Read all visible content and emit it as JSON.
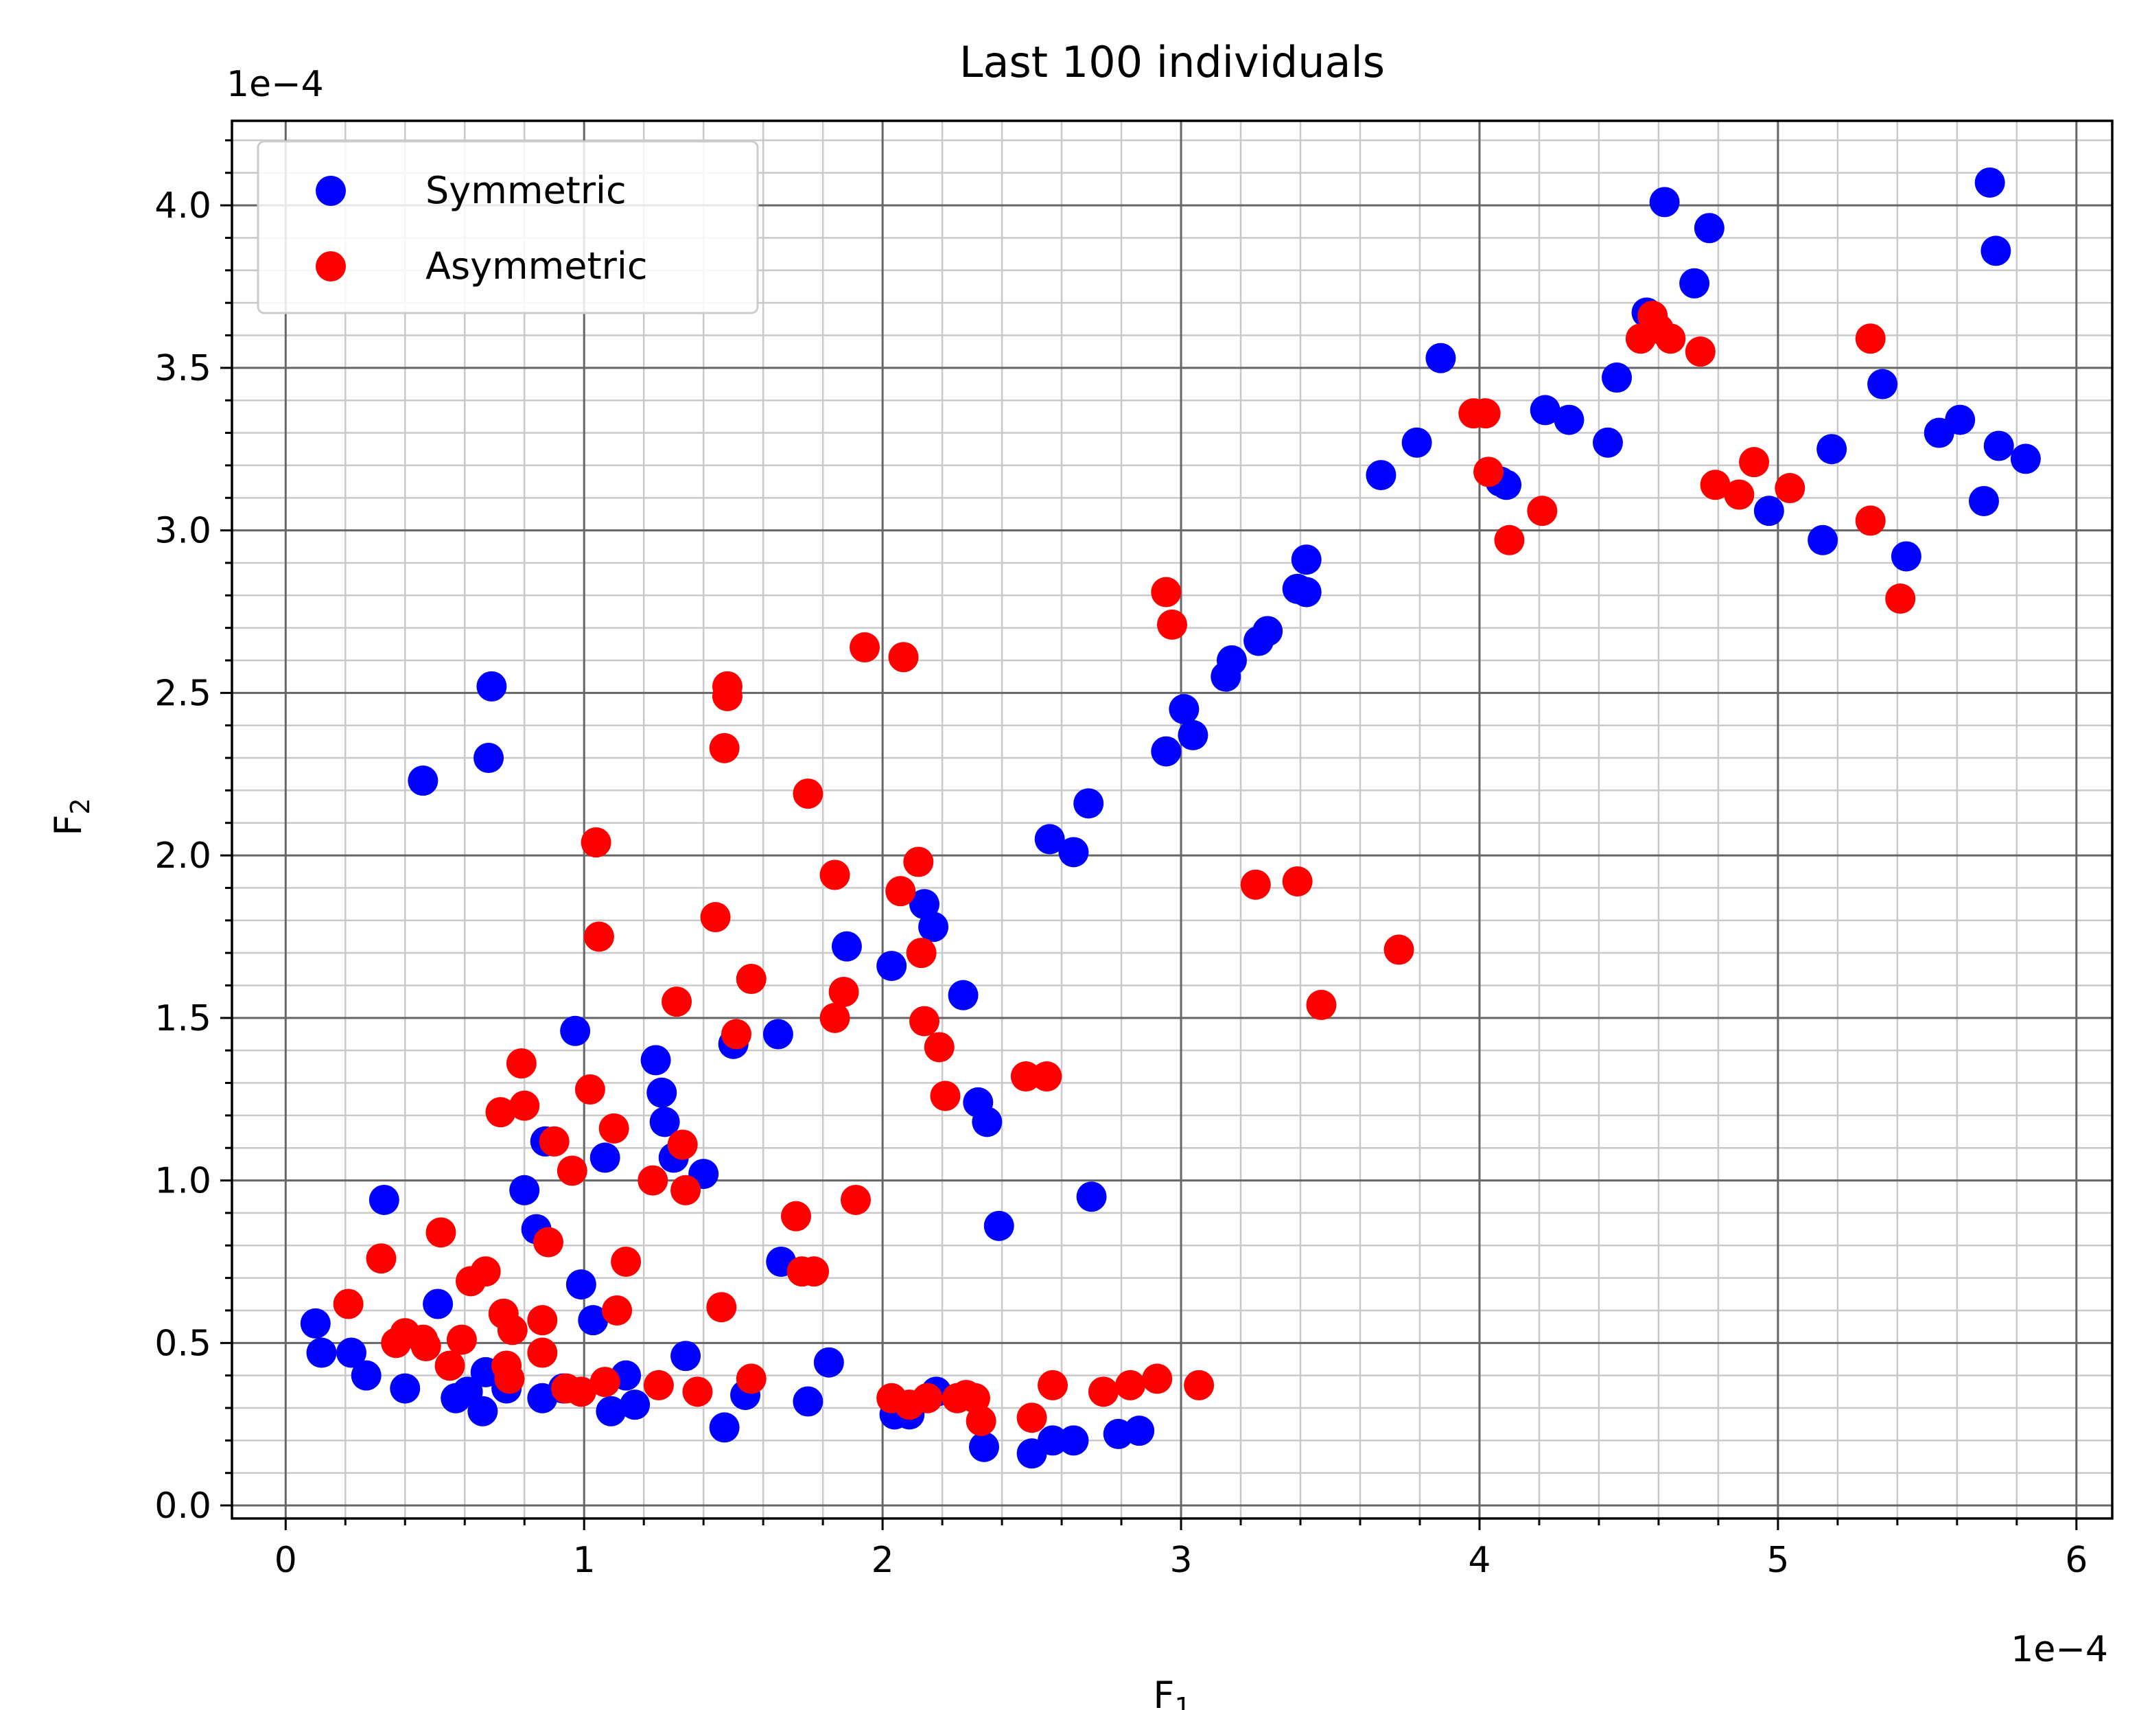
{
  "chart_data": {
    "type": "scatter",
    "title": "Last 100 individuals",
    "xlabel": {
      "main": "F",
      "sub": "1"
    },
    "ylabel": {
      "main": "F",
      "sub": "2"
    },
    "x_offset_label": "1e−4",
    "y_offset_label": "1e−4",
    "xlim": [
      -0.18,
      6.12
    ],
    "ylim": [
      -0.04,
      4.26
    ],
    "x_ticks": [
      0,
      1,
      2,
      3,
      4,
      5,
      6
    ],
    "x_tick_labels": [
      "0",
      "1",
      "2",
      "3",
      "4",
      "5",
      "6"
    ],
    "y_ticks": [
      0,
      0.5,
      1,
      1.5,
      2,
      2.5,
      3,
      3.5,
      4
    ],
    "y_tick_labels": [
      "0.0",
      "0.5",
      "1.0",
      "1.5",
      "2.0",
      "2.5",
      "3.0",
      "3.5",
      "4.0"
    ],
    "x_minor_step": 0.2,
    "y_minor_step": 0.1,
    "grid": true,
    "legend_position": "top-left",
    "series": [
      {
        "name": "Symmetric",
        "color": "#0000ff",
        "points": [
          [
            0.1,
            0.56
          ],
          [
            0.12,
            0.47
          ],
          [
            0.22,
            0.47
          ],
          [
            0.27,
            0.4
          ],
          [
            0.33,
            0.94
          ],
          [
            0.4,
            0.36
          ],
          [
            0.46,
            2.23
          ],
          [
            0.51,
            0.62
          ],
          [
            0.57,
            0.33
          ],
          [
            0.61,
            0.35
          ],
          [
            0.66,
            0.29
          ],
          [
            0.67,
            0.41
          ],
          [
            0.68,
            2.3
          ],
          [
            0.69,
            2.52
          ],
          [
            0.74,
            0.36
          ],
          [
            0.8,
            0.97
          ],
          [
            0.84,
            0.85
          ],
          [
            0.86,
            0.33
          ],
          [
            0.87,
            1.12
          ],
          [
            0.93,
            0.36
          ],
          [
            0.97,
            1.46
          ],
          [
            0.99,
            0.68
          ],
          [
            1.03,
            0.57
          ],
          [
            1.07,
            1.07
          ],
          [
            1.09,
            0.29
          ],
          [
            1.14,
            0.4
          ],
          [
            1.17,
            0.31
          ],
          [
            1.24,
            1.37
          ],
          [
            1.26,
            1.27
          ],
          [
            1.27,
            1.18
          ],
          [
            1.3,
            1.07
          ],
          [
            1.34,
            0.46
          ],
          [
            1.4,
            1.02
          ],
          [
            1.47,
            0.24
          ],
          [
            1.5,
            1.42
          ],
          [
            1.54,
            0.34
          ],
          [
            1.65,
            1.45
          ],
          [
            1.66,
            0.75
          ],
          [
            1.75,
            0.32
          ],
          [
            1.82,
            0.44
          ],
          [
            1.88,
            1.72
          ],
          [
            2.03,
            1.66
          ],
          [
            2.04,
            0.28
          ],
          [
            2.09,
            0.28
          ],
          [
            2.14,
            1.85
          ],
          [
            2.17,
            1.78
          ],
          [
            2.18,
            0.35
          ],
          [
            2.27,
            1.57
          ],
          [
            2.32,
            1.24
          ],
          [
            2.34,
            0.18
          ],
          [
            2.35,
            1.18
          ],
          [
            2.39,
            0.86
          ],
          [
            2.5,
            0.16
          ],
          [
            2.56,
            2.05
          ],
          [
            2.57,
            0.2
          ],
          [
            2.64,
            2.01
          ],
          [
            2.64,
            0.2
          ],
          [
            2.69,
            2.16
          ],
          [
            2.7,
            0.95
          ],
          [
            2.79,
            0.22
          ],
          [
            2.86,
            0.23
          ],
          [
            2.95,
            2.32
          ],
          [
            3.01,
            2.45
          ],
          [
            3.04,
            2.37
          ],
          [
            3.15,
            2.55
          ],
          [
            3.17,
            2.6
          ],
          [
            3.26,
            2.66
          ],
          [
            3.29,
            2.69
          ],
          [
            3.39,
            2.82
          ],
          [
            3.42,
            2.91
          ],
          [
            3.42,
            2.81
          ],
          [
            3.67,
            3.17
          ],
          [
            3.79,
            3.27
          ],
          [
            3.87,
            3.53
          ],
          [
            4.07,
            3.15
          ],
          [
            4.09,
            3.14
          ],
          [
            4.22,
            3.37
          ],
          [
            4.3,
            3.34
          ],
          [
            4.43,
            3.27
          ],
          [
            4.46,
            3.47
          ],
          [
            4.56,
            3.67
          ],
          [
            4.62,
            4.01
          ],
          [
            4.72,
            3.76
          ],
          [
            4.77,
            3.93
          ],
          [
            4.97,
            3.06
          ],
          [
            5.15,
            2.97
          ],
          [
            5.18,
            3.25
          ],
          [
            5.35,
            3.45
          ],
          [
            5.43,
            2.92
          ],
          [
            5.54,
            3.3
          ],
          [
            5.61,
            3.34
          ],
          [
            5.69,
            3.09
          ],
          [
            5.71,
            4.07
          ],
          [
            5.73,
            3.86
          ],
          [
            5.74,
            3.26
          ],
          [
            5.83,
            3.22
          ]
        ]
      },
      {
        "name": "Asymmetric",
        "color": "#ff0000",
        "points": [
          [
            0.21,
            0.62
          ],
          [
            0.32,
            0.76
          ],
          [
            0.37,
            0.5
          ],
          [
            0.4,
            0.53
          ],
          [
            0.46,
            0.51
          ],
          [
            0.47,
            0.49
          ],
          [
            0.52,
            0.84
          ],
          [
            0.55,
            0.43
          ],
          [
            0.59,
            0.51
          ],
          [
            0.62,
            0.69
          ],
          [
            0.67,
            0.72
          ],
          [
            0.72,
            1.21
          ],
          [
            0.73,
            0.59
          ],
          [
            0.74,
            0.43
          ],
          [
            0.75,
            0.39
          ],
          [
            0.76,
            0.54
          ],
          [
            0.79,
            1.36
          ],
          [
            0.8,
            1.23
          ],
          [
            0.86,
            0.47
          ],
          [
            0.86,
            0.57
          ],
          [
            0.88,
            0.81
          ],
          [
            0.9,
            1.12
          ],
          [
            0.94,
            0.36
          ],
          [
            0.96,
            1.03
          ],
          [
            0.99,
            0.35
          ],
          [
            1.02,
            1.28
          ],
          [
            1.04,
            2.04
          ],
          [
            1.05,
            1.75
          ],
          [
            1.07,
            0.38
          ],
          [
            1.1,
            1.16
          ],
          [
            1.11,
            0.6
          ],
          [
            1.14,
            0.75
          ],
          [
            1.23,
            1.0
          ],
          [
            1.25,
            0.37
          ],
          [
            1.31,
            1.55
          ],
          [
            1.33,
            1.11
          ],
          [
            1.34,
            0.97
          ],
          [
            1.38,
            0.35
          ],
          [
            1.44,
            1.81
          ],
          [
            1.46,
            0.61
          ],
          [
            1.47,
            2.33
          ],
          [
            1.48,
            2.52
          ],
          [
            1.48,
            2.49
          ],
          [
            1.51,
            1.45
          ],
          [
            1.56,
            1.62
          ],
          [
            1.56,
            0.39
          ],
          [
            1.71,
            0.89
          ],
          [
            1.73,
            0.72
          ],
          [
            1.75,
            2.19
          ],
          [
            1.77,
            0.72
          ],
          [
            1.84,
            1.94
          ],
          [
            1.84,
            1.5
          ],
          [
            1.87,
            1.58
          ],
          [
            1.91,
            0.94
          ],
          [
            1.94,
            2.64
          ],
          [
            2.03,
            0.33
          ],
          [
            2.06,
            1.89
          ],
          [
            2.07,
            2.61
          ],
          [
            2.09,
            0.31
          ],
          [
            2.12,
            1.98
          ],
          [
            2.13,
            1.7
          ],
          [
            2.14,
            1.49
          ],
          [
            2.15,
            0.33
          ],
          [
            2.19,
            1.41
          ],
          [
            2.21,
            1.26
          ],
          [
            2.25,
            0.33
          ],
          [
            2.28,
            0.34
          ],
          [
            2.31,
            0.33
          ],
          [
            2.33,
            0.26
          ],
          [
            2.48,
            1.32
          ],
          [
            2.5,
            0.27
          ],
          [
            2.55,
            1.32
          ],
          [
            2.57,
            0.37
          ],
          [
            2.74,
            0.35
          ],
          [
            2.83,
            0.37
          ],
          [
            2.92,
            0.39
          ],
          [
            2.95,
            2.81
          ],
          [
            2.97,
            2.71
          ],
          [
            3.06,
            0.37
          ],
          [
            3.25,
            1.91
          ],
          [
            3.39,
            1.92
          ],
          [
            3.47,
            1.54
          ],
          [
            3.73,
            1.71
          ],
          [
            3.98,
            3.36
          ],
          [
            4.02,
            3.36
          ],
          [
            4.03,
            3.18
          ],
          [
            4.1,
            2.97
          ],
          [
            4.21,
            3.06
          ],
          [
            4.54,
            3.59
          ],
          [
            4.58,
            3.66
          ],
          [
            4.6,
            3.62
          ],
          [
            4.64,
            3.59
          ],
          [
            4.74,
            3.55
          ],
          [
            4.79,
            3.14
          ],
          [
            4.87,
            3.11
          ],
          [
            4.92,
            3.21
          ],
          [
            5.04,
            3.13
          ],
          [
            5.31,
            3.59
          ],
          [
            5.31,
            3.03
          ],
          [
            5.41,
            2.79
          ]
        ]
      }
    ]
  }
}
